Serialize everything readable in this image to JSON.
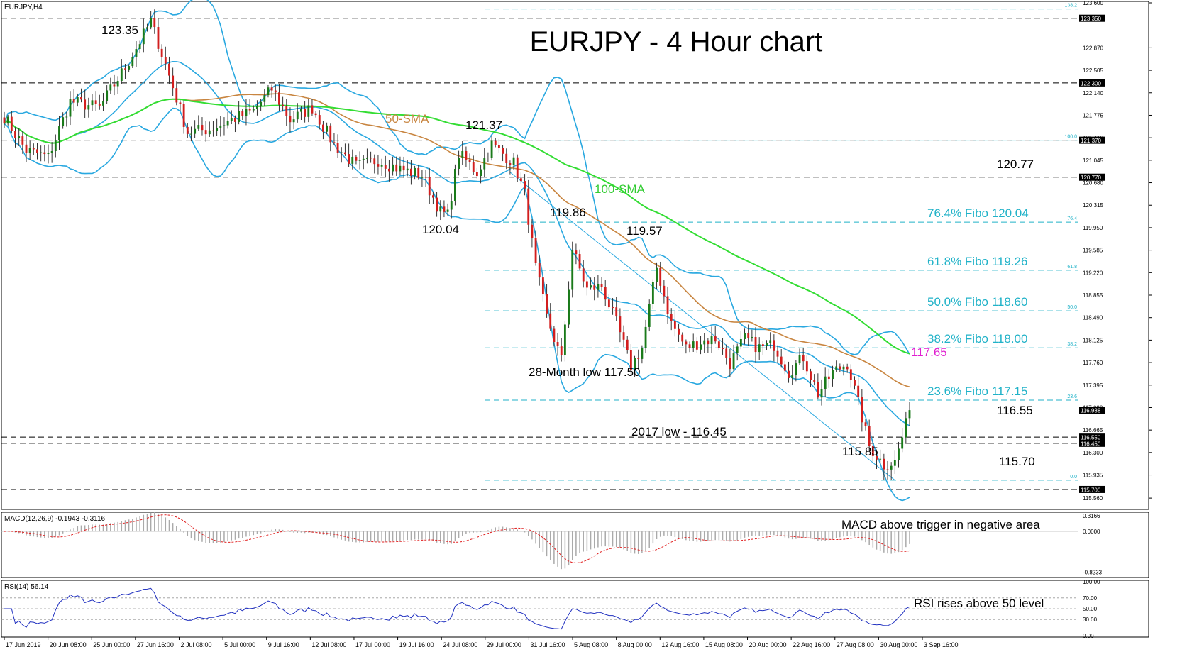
{
  "chart_data": {
    "type": "candlestick",
    "symbol_label": "EURJPY,H4",
    "title": "EURJPY - 4 Hour chart",
    "price_axis": {
      "ylim": [
        115.4,
        123.6
      ],
      "ticks": [
        "123.600",
        "122.870",
        "122.505",
        "122.140",
        "121.775",
        "121.410",
        "121.045",
        "120.680",
        "120.315",
        "119.950",
        "119.585",
        "119.220",
        "118.855",
        "118.490",
        "118.125",
        "117.760",
        "117.395",
        "117.030",
        "116.665",
        "116.300",
        "115.935",
        "115.560"
      ],
      "price_boxes": [
        {
          "label": "123.350",
          "value": 123.35,
          "style": "line"
        },
        {
          "label": "122.300",
          "value": 122.3,
          "style": "line"
        },
        {
          "label": "121.370",
          "value": 121.37,
          "style": "line"
        },
        {
          "label": "120.770",
          "value": 120.77,
          "style": "line"
        },
        {
          "label": "116.988",
          "value": 116.988,
          "style": "current"
        },
        {
          "label": "116.550",
          "value": 116.55,
          "style": "line"
        },
        {
          "label": "116.450",
          "value": 116.45,
          "style": "line"
        },
        {
          "label": "115.700",
          "value": 115.7,
          "style": "line"
        }
      ]
    },
    "x_labels": [
      "17 Jun 2019",
      "20 Jun 08:00",
      "25 Jun 00:00",
      "27 Jun 16:00",
      "2 Jul 08:00",
      "5 Jul 00:00",
      "9 Jul 16:00",
      "12 Jul 08:00",
      "17 Jul 00:00",
      "19 Jul 16:00",
      "24 Jul 08:00",
      "29 Jul 00:00",
      "31 Jul 16:00",
      "5 Aug 08:00",
      "8 Aug 00:00",
      "12 Aug 16:00",
      "15 Aug 08:00",
      "20 Aug 00:00",
      "22 Aug 16:00",
      "27 Aug 08:00",
      "30 Aug 00:00",
      "3 Sep 16:00"
    ],
    "horizontal_levels": [
      {
        "value": 123.35,
        "label": "123.35"
      },
      {
        "value": 122.3
      },
      {
        "value": 121.37,
        "label": "121.37"
      },
      {
        "value": 120.77,
        "label": "120.77"
      },
      {
        "value": 116.55,
        "label": "116.55"
      },
      {
        "value": 116.45,
        "label": "2017 low - 116.45"
      },
      {
        "value": 115.7,
        "label": "115.70"
      }
    ],
    "fibonacci": [
      {
        "pct": "138.2",
        "value": 123.5,
        "label": ""
      },
      {
        "pct": "100.0",
        "value": 121.37,
        "label": ""
      },
      {
        "pct": "76.4",
        "value": 120.04,
        "label": "76.4% Fibo 120.04"
      },
      {
        "pct": "61.8",
        "value": 119.26,
        "label": "61.8% Fibo 119.26"
      },
      {
        "pct": "50.0",
        "value": 118.6,
        "label": "50.0% Fibo 118.60"
      },
      {
        "pct": "38.2",
        "value": 118.0,
        "label": "38.2% Fibo 118.00"
      },
      {
        "pct": "23.6",
        "value": 117.15,
        "label": "23.6% Fibo 117.15"
      },
      {
        "pct": "0.0",
        "value": 115.85,
        "label": ""
      }
    ],
    "annotations": [
      {
        "text": "123.35",
        "i": 40,
        "value": 123.35,
        "color": "#000000"
      },
      {
        "text": "121.37",
        "i": 133,
        "value": 121.37,
        "color": "#000000"
      },
      {
        "text": "120.04",
        "i": 121,
        "value": 120.04,
        "color": "#000000"
      },
      {
        "text": "119.86",
        "i": 155,
        "value": 119.86,
        "color": "#000000"
      },
      {
        "text": "119.57",
        "i": 178,
        "value": 119.57,
        "color": "#000000"
      },
      {
        "text": "28-Month low 117.50",
        "i": 159,
        "value": 117.5,
        "color": "#000000"
      },
      {
        "text": "115.85",
        "i": 236,
        "value": 115.85,
        "color": "#000000"
      },
      {
        "text": "117.65",
        "value": 117.65,
        "color": "#e020d0"
      }
    ],
    "indicator_labels": {
      "sma50": "50-SMA",
      "sma100": "100-SMA"
    },
    "key_points": [
      {
        "i": 0,
        "v": 121.75
      },
      {
        "i": 6,
        "v": 121.2
      },
      {
        "i": 12,
        "v": 121.1
      },
      {
        "i": 18,
        "v": 122.0
      },
      {
        "i": 26,
        "v": 121.9
      },
      {
        "i": 34,
        "v": 122.65
      },
      {
        "i": 40,
        "v": 123.3
      },
      {
        "i": 44,
        "v": 122.6
      },
      {
        "i": 50,
        "v": 121.5
      },
      {
        "i": 56,
        "v": 121.55
      },
      {
        "i": 62,
        "v": 121.7
      },
      {
        "i": 68,
        "v": 121.85
      },
      {
        "i": 73,
        "v": 122.2
      },
      {
        "i": 78,
        "v": 121.7
      },
      {
        "i": 84,
        "v": 121.9
      },
      {
        "i": 90,
        "v": 121.3
      },
      {
        "i": 96,
        "v": 120.95
      },
      {
        "i": 102,
        "v": 121.05
      },
      {
        "i": 108,
        "v": 120.9
      },
      {
        "i": 114,
        "v": 120.8
      },
      {
        "i": 119,
        "v": 120.2
      },
      {
        "i": 121,
        "v": 120.15
      },
      {
        "i": 124,
        "v": 121.15
      },
      {
        "i": 129,
        "v": 120.85
      },
      {
        "i": 133,
        "v": 121.3
      },
      {
        "i": 139,
        "v": 121.0
      },
      {
        "i": 142,
        "v": 120.5
      },
      {
        "i": 145,
        "v": 119.3
      },
      {
        "i": 148,
        "v": 118.5
      },
      {
        "i": 152,
        "v": 117.8
      },
      {
        "i": 155,
        "v": 119.6
      },
      {
        "i": 159,
        "v": 118.95
      },
      {
        "i": 163,
        "v": 119.0
      },
      {
        "i": 167,
        "v": 118.4
      },
      {
        "i": 171,
        "v": 117.7
      },
      {
        "i": 174,
        "v": 118.0
      },
      {
        "i": 178,
        "v": 119.3
      },
      {
        "i": 182,
        "v": 118.4
      },
      {
        "i": 186,
        "v": 118.0
      },
      {
        "i": 190,
        "v": 118.1
      },
      {
        "i": 194,
        "v": 118.15
      },
      {
        "i": 198,
        "v": 117.75
      },
      {
        "i": 202,
        "v": 118.15
      },
      {
        "i": 206,
        "v": 118.0
      },
      {
        "i": 210,
        "v": 118.05
      },
      {
        "i": 214,
        "v": 117.6
      },
      {
        "i": 218,
        "v": 117.85
      },
      {
        "i": 222,
        "v": 117.25
      },
      {
        "i": 226,
        "v": 117.6
      },
      {
        "i": 230,
        "v": 117.75
      },
      {
        "i": 233,
        "v": 117.1
      },
      {
        "i": 236,
        "v": 116.4
      },
      {
        "i": 240,
        "v": 116.1
      },
      {
        "i": 243,
        "v": 116.15
      },
      {
        "i": 247,
        "v": 116.95
      }
    ],
    "macd": {
      "label": "MACD(12,26,9) -0.1943 -0.3116",
      "ylim": [
        -0.9,
        0.36
      ],
      "ticks": [
        "0.3166",
        "0.0000",
        "-0.8233"
      ],
      "annotation": "MACD above trigger in negative area"
    },
    "rsi": {
      "label": "RSI(14) 56.14",
      "ylim": [
        0,
        100
      ],
      "ticks": [
        "100.00",
        "70.00",
        "50.00",
        "30.00",
        "0.00"
      ],
      "levels": [
        70,
        50,
        30
      ],
      "annotation": "RSI rises above 50 level"
    },
    "colors": {
      "bull": "#1a7a1a",
      "bear": "#d21e1e",
      "wick": "#333333",
      "bollinger": "#29a8e0",
      "sma50": "#c88540",
      "sma100": "#33dd33",
      "fibo": "#20b2c8",
      "levels": "#000000",
      "macd_hist": "#aaaaaa",
      "macd_signal": "#e02020",
      "rsi": "#2030c0",
      "trend": "#29a8e0"
    }
  }
}
